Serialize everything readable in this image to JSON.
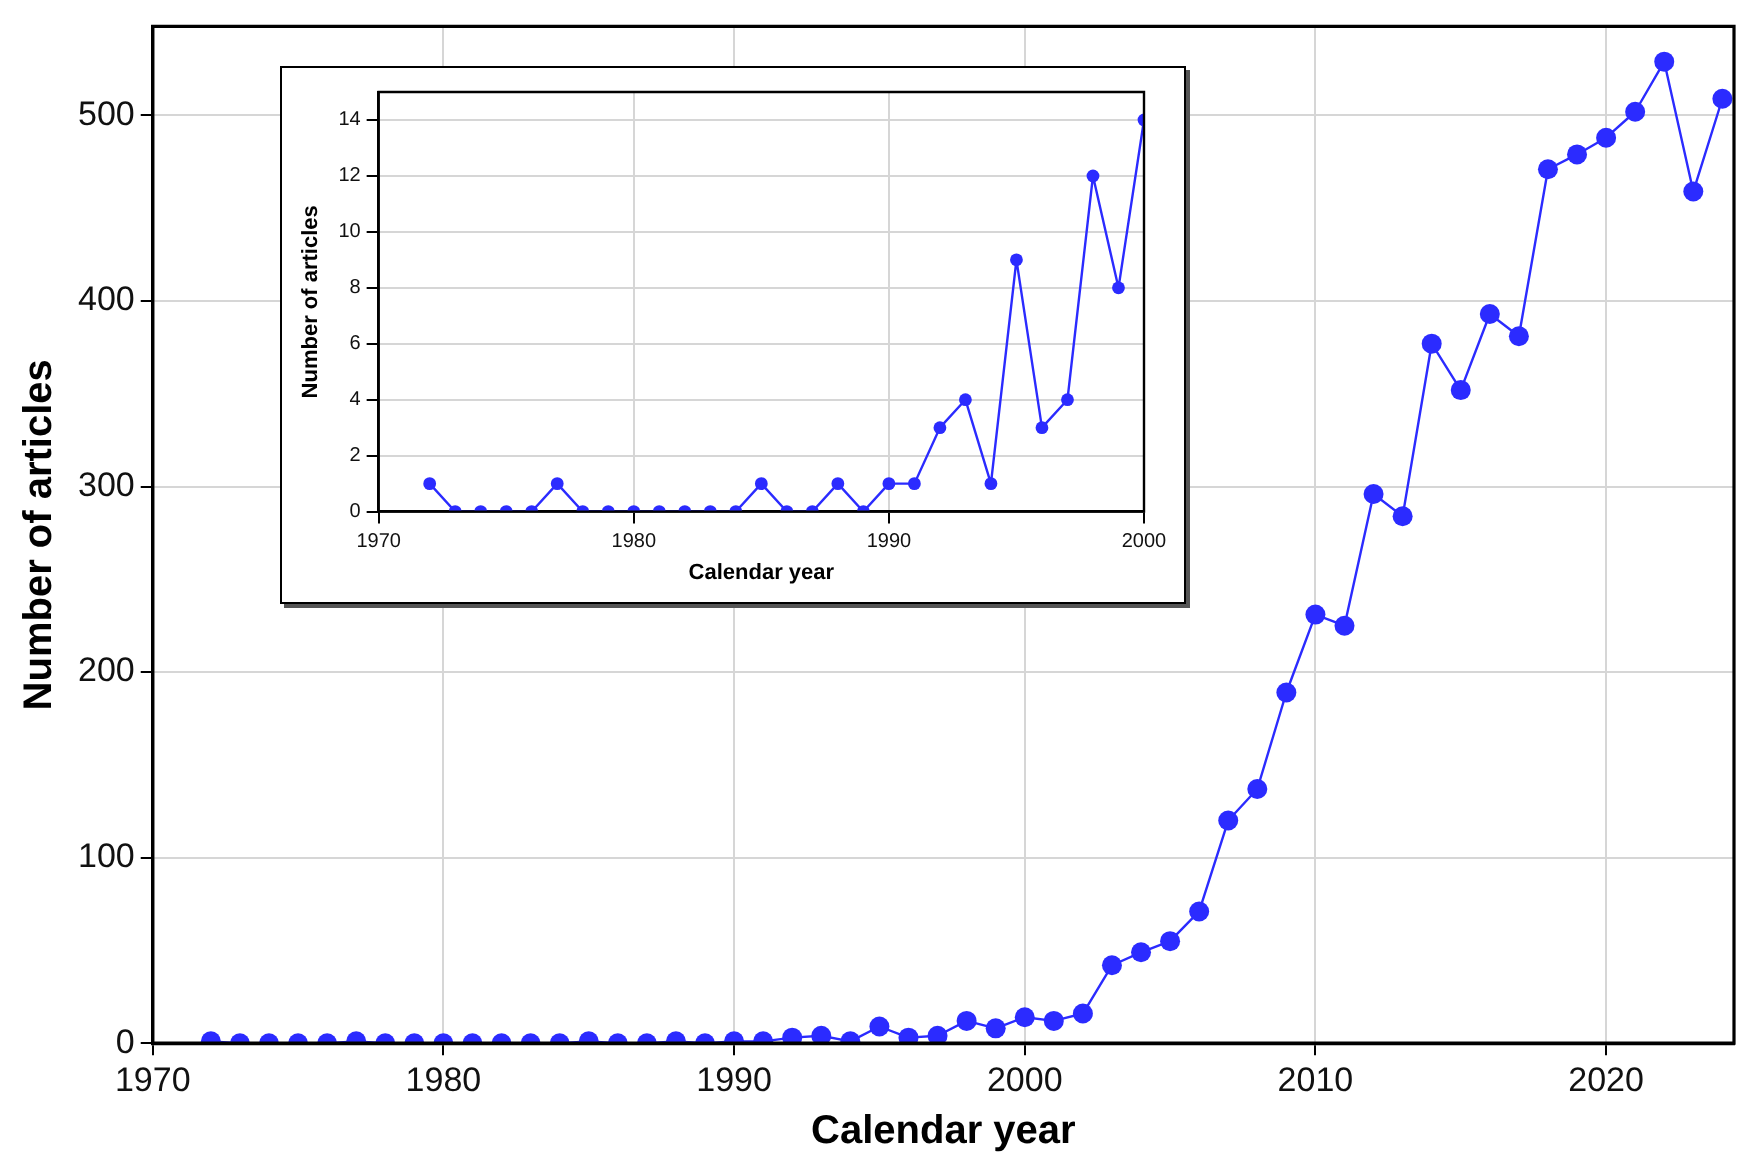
{
  "chart_data": [
    {
      "type": "line",
      "xlabel": "Calendar year",
      "ylabel": "Number of articles",
      "x": [
        1972,
        1973,
        1974,
        1975,
        1976,
        1977,
        1978,
        1979,
        1980,
        1981,
        1982,
        1983,
        1984,
        1985,
        1986,
        1987,
        1988,
        1989,
        1990,
        1991,
        1992,
        1993,
        1994,
        1995,
        1996,
        1997,
        1998,
        1999,
        2000,
        2001,
        2002,
        2003,
        2004,
        2005,
        2006,
        2007,
        2008,
        2009,
        2010,
        2011,
        2012,
        2013,
        2014,
        2015,
        2016,
        2017,
        2018,
        2019,
        2020,
        2021,
        2022,
        2023,
        2024
      ],
      "series": [
        {
          "color": "#2b2bff",
          "values": [
            1,
            0,
            0,
            0,
            0,
            1,
            0,
            0,
            0,
            0,
            0,
            0,
            0,
            1,
            0,
            0,
            1,
            0,
            1,
            1,
            3,
            4,
            1,
            9,
            3,
            4,
            12,
            8,
            14,
            12,
            16,
            42,
            49,
            55,
            71,
            120,
            137,
            189,
            231,
            225,
            296,
            284,
            377,
            352,
            393,
            381,
            471,
            479,
            488,
            502,
            529,
            459,
            509
          ]
        }
      ],
      "xlim": [
        1970,
        2024.4
      ],
      "ylim": [
        0,
        548
      ],
      "xticks": [
        1970,
        1980,
        1990,
        2000,
        2010,
        2020
      ],
      "yticks": [
        0,
        100,
        200,
        300,
        400,
        500
      ],
      "grid": true,
      "legend": false,
      "marker": "circle",
      "line_style": "solid"
    },
    {
      "type": "line",
      "xlabel": "Calendar year",
      "ylabel": "Number of articles",
      "x": [
        1972,
        1973,
        1974,
        1975,
        1976,
        1977,
        1978,
        1979,
        1980,
        1981,
        1982,
        1983,
        1984,
        1985,
        1986,
        1987,
        1988,
        1989,
        1990,
        1991,
        1992,
        1993,
        1994,
        1995,
        1996,
        1997,
        1998,
        1999,
        2000
      ],
      "series": [
        {
          "color": "#2b2bff",
          "values": [
            1,
            0,
            0,
            0,
            0,
            1,
            0,
            0,
            0,
            0,
            0,
            0,
            0,
            1,
            0,
            0,
            1,
            0,
            1,
            1,
            3,
            4,
            1,
            9,
            3,
            4,
            12,
            8,
            14
          ]
        }
      ],
      "xlim": [
        1970,
        2000
      ],
      "ylim": [
        0,
        15
      ],
      "xticks": [
        1970,
        1980,
        1990,
        2000
      ],
      "yticks": [
        0,
        2,
        4,
        6,
        8,
        10,
        12,
        14
      ],
      "grid": true,
      "legend": false,
      "marker": "circle",
      "line_style": "solid"
    }
  ]
}
